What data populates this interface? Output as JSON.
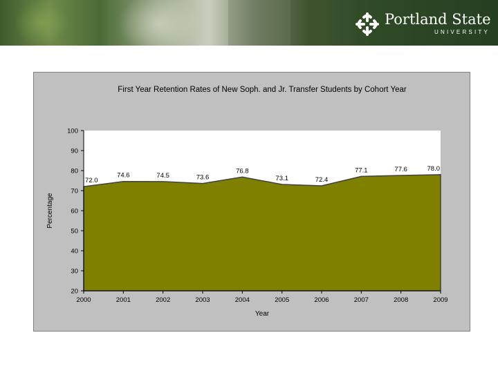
{
  "header": {
    "logo_name": "Portland State",
    "logo_sub": "UNIVERSITY"
  },
  "chart_data": {
    "type": "area",
    "title": "First Year Retention Rates of New Soph. and Jr. Transfer Students by Cohort Year",
    "xlabel": "Year",
    "ylabel": "Percentage",
    "categories": [
      "2000",
      "2001",
      "2002",
      "2003",
      "2004",
      "2005",
      "2006",
      "2007",
      "2008",
      "2009"
    ],
    "values": [
      72.0,
      74.6,
      74.5,
      73.6,
      76.8,
      73.1,
      72.4,
      77.1,
      77.6,
      78.0
    ],
    "data_labels": [
      "72.0",
      "74.6",
      "74.5",
      "73.6",
      "76.8",
      "73.1",
      "72.4",
      "77.1",
      "77.6",
      "78.0"
    ],
    "ylim": [
      20,
      100
    ],
    "yticks": [
      "20",
      "30",
      "40",
      "50",
      "60",
      "70",
      "80",
      "90",
      "100"
    ],
    "colors": {
      "area": "#808000",
      "line": "#404040",
      "plot_bg": "#ffffff",
      "frame_bg": "#c0c0c0"
    },
    "grid": false,
    "legend": "none"
  }
}
